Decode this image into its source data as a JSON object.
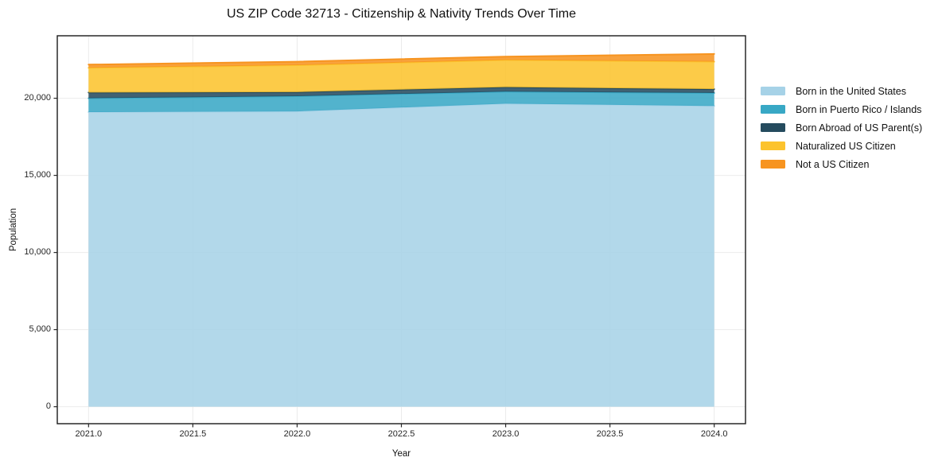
{
  "figure": {
    "background": "#ffffff"
  },
  "chart_data": {
    "type": "area",
    "stacked": true,
    "title": "US ZIP Code 32713 - Citizenship & Nativity Trends Over Time",
    "xlabel": "Year",
    "ylabel": "Population",
    "x": [
      2021,
      2022,
      2023,
      2024
    ],
    "series": [
      {
        "name": "Born in the United States",
        "color": "#a6d2e7",
        "values": [
          19100,
          19150,
          19650,
          19500
        ]
      },
      {
        "name": "Born in Puerto Rico / Islands",
        "color": "#38a8c5",
        "values": [
          900,
          980,
          780,
          840
        ]
      },
      {
        "name": "Born Abroad of US Parent(s)",
        "color": "#254b5e",
        "values": [
          370,
          270,
          290,
          250
        ]
      },
      {
        "name": "Naturalized US Citizen",
        "color": "#fcc32d",
        "values": [
          1600,
          1740,
          1760,
          1780
        ]
      },
      {
        "name": "Not a US Citizen",
        "color": "#f79420",
        "values": [
          210,
          230,
          220,
          500
        ]
      }
    ],
    "xlim": [
      2020.85,
      2024.15
    ],
    "ylim": [
      -1100,
      24050
    ],
    "xticks": {
      "values": [
        2021,
        2021.5,
        2022,
        2022.5,
        2023,
        2023.5,
        2024
      ],
      "labels": [
        "2021.0",
        "2021.5",
        "2022.0",
        "2022.5",
        "2023.0",
        "2023.5",
        "2024.0"
      ]
    },
    "yticks": {
      "values": [
        0,
        5000,
        10000,
        15000,
        20000
      ],
      "labels": [
        "0",
        "5,000",
        "10,000",
        "15,000",
        "20,000"
      ]
    },
    "grid": true,
    "legend_position": "right-outside",
    "legend_frame": false
  },
  "style": {
    "grid_color": "#ebebeb",
    "spine_color": "#1a1a1a",
    "tick_color": "#262626",
    "fill_opacity": 0.87,
    "edge_width": 2
  }
}
